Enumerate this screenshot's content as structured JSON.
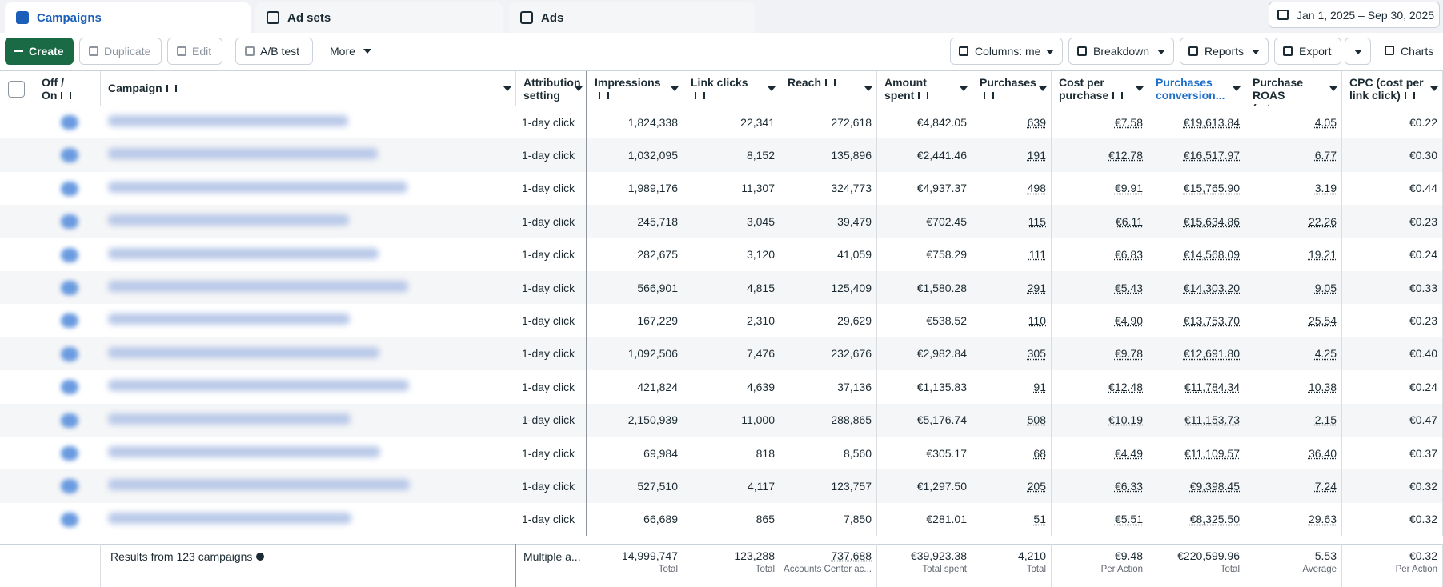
{
  "tabs": [
    "Campaigns",
    "Ad sets",
    "Ads"
  ],
  "date_range": "Jan 1, 2025 – Sep 30, 2025",
  "toolbar": {
    "left": [
      "Create",
      "Duplicate",
      "Edit",
      "A/B test",
      "More"
    ],
    "right": [
      "Columns: me",
      "Breakdown",
      "Reports",
      "Export",
      "Charts"
    ]
  },
  "table": {
    "columns": [
      "Off / On",
      "Campaign",
      "Attribution setting",
      "Impressions",
      "Link clicks",
      "Reach",
      "Amount spent",
      "Purchases",
      "Cost per purchase",
      "Purchases conversion...",
      "Purchase ROAS (retur...",
      "CPC (cost per link click)"
    ],
    "rows": [
      {
        "attribution": "1-day click",
        "values": [
          "1,824,338",
          "22,341",
          "272,618",
          "€4,842.05",
          "639",
          "€7.58",
          "€19,613.84",
          "4.05",
          "€0.22"
        ]
      },
      {
        "attribution": "1-day click",
        "values": [
          "1,032,095",
          "8,152",
          "135,896",
          "€2,441.46",
          "191",
          "€12.78",
          "€16,517.97",
          "6.77",
          "€0.30"
        ]
      },
      {
        "attribution": "1-day click",
        "values": [
          "1,989,176",
          "11,307",
          "324,773",
          "€4,937.37",
          "498",
          "€9.91",
          "€15,765.90",
          "3.19",
          "€0.44"
        ]
      },
      {
        "attribution": "1-day click",
        "values": [
          "245,718",
          "3,045",
          "39,479",
          "€702.45",
          "115",
          "€6.11",
          "€15,634.86",
          "22.26",
          "€0.23"
        ]
      },
      {
        "attribution": "1-day click",
        "values": [
          "282,675",
          "3,120",
          "41,059",
          "€758.29",
          "111",
          "€6.83",
          "€14,568.09",
          "19.21",
          "€0.24"
        ]
      },
      {
        "attribution": "1-day click",
        "values": [
          "566,901",
          "4,815",
          "125,409",
          "€1,580.28",
          "291",
          "€5.43",
          "€14,303.20",
          "9.05",
          "€0.33"
        ]
      },
      {
        "attribution": "1-day click",
        "values": [
          "167,229",
          "2,310",
          "29,629",
          "€538.52",
          "110",
          "€4.90",
          "€13,753.70",
          "25.54",
          "€0.23"
        ]
      },
      {
        "attribution": "1-day click",
        "values": [
          "1,092,506",
          "7,476",
          "232,676",
          "€2,982.84",
          "305",
          "€9.78",
          "€12,691.80",
          "4.25",
          "€0.40"
        ]
      },
      {
        "attribution": "1-day click",
        "values": [
          "421,824",
          "4,639",
          "37,136",
          "€1,135.83",
          "91",
          "€12.48",
          "€11,784.34",
          "10.38",
          "€0.24"
        ]
      },
      {
        "attribution": "1-day click",
        "values": [
          "2,150,939",
          "11,000",
          "288,865",
          "€5,176.74",
          "508",
          "€10.19",
          "€11,153.73",
          "2.15",
          "€0.47"
        ]
      },
      {
        "attribution": "1-day click",
        "values": [
          "69,984",
          "818",
          "8,560",
          "€305.17",
          "68",
          "€4.49",
          "€11,109.57",
          "36.40",
          "€0.37"
        ]
      },
      {
        "attribution": "1-day click",
        "values": [
          "527,510",
          "4,117",
          "123,757",
          "€1,297.50",
          "205",
          "€6.33",
          "€9,398.45",
          "7.24",
          "€0.32"
        ]
      },
      {
        "attribution": "1-day click",
        "values": [
          "66,689",
          "865",
          "7,850",
          "€281.01",
          "51",
          "€5.51",
          "€8,325.50",
          "29.63",
          "€0.32"
        ]
      }
    ],
    "totals": {
      "label": "Results from 123 campaigns",
      "attribution": "Multiple a...",
      "values": [
        {
          "value": "14,999,747",
          "note": "Total"
        },
        {
          "value": "123,288",
          "note": "Total"
        },
        {
          "value": "737,688",
          "note": "Accounts Center ac..."
        },
        {
          "value": "€39,923.38",
          "note": "Total spent"
        },
        {
          "value": "4,210",
          "note": "Total"
        },
        {
          "value": "€9.48",
          "note": "Per Action"
        },
        {
          "value": "€220,599.96",
          "note": "Total"
        },
        {
          "value": "5.53",
          "note": "Average"
        },
        {
          "value": "€0.32",
          "note": "Per Action"
        }
      ]
    }
  }
}
